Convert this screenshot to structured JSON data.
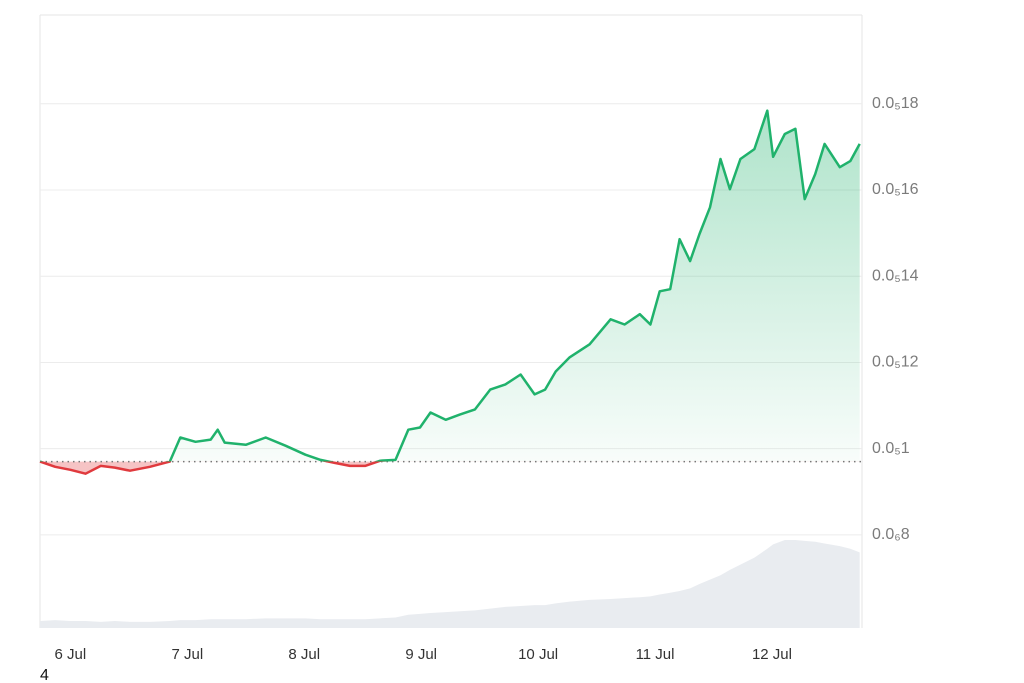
{
  "chart_data": {
    "type": "line",
    "x": [
      5.74,
      5.87,
      6.0,
      6.13,
      6.26,
      6.38,
      6.51,
      6.68,
      6.85,
      6.94,
      7.07,
      7.2,
      7.26,
      7.32,
      7.5,
      7.67,
      7.84,
      8.01,
      8.14,
      8.26,
      8.39,
      8.52,
      8.65,
      8.78,
      8.89,
      8.99,
      9.08,
      9.21,
      9.33,
      9.46,
      9.59,
      9.72,
      9.85,
      9.97,
      10.06,
      10.15,
      10.27,
      10.44,
      10.62,
      10.74,
      10.87,
      10.96,
      11.04,
      11.13,
      11.21,
      11.3,
      11.38,
      11.47,
      11.56,
      11.64,
      11.73,
      11.85,
      11.96,
      12.01,
      12.11,
      12.2,
      12.28,
      12.37,
      12.45,
      12.58,
      12.67,
      12.75
    ],
    "series": [
      {
        "color": "#20b26c",
        "down_color": "#e03a3e",
        "values": [
          9.7e-07,
          9.58e-07,
          9.51e-07,
          9.42e-07,
          9.6e-07,
          9.56e-07,
          9.49e-07,
          9.58e-07,
          9.7e-07,
          1.026e-06,
          1.016e-06,
          1.021e-06,
          1.044e-06,
          1.014e-06,
          1.009e-06,
          1.026e-06,
          1.007e-06,
          9.86e-07,
          9.74e-07,
          9.67e-07,
          9.6e-07,
          9.6e-07,
          9.72e-07,
          9.74e-07,
          1.044e-06,
          1.049e-06,
          1.084e-06,
          1.067e-06,
          1.079e-06,
          1.091e-06,
          1.137e-06,
          1.149e-06,
          1.172e-06,
          1.126e-06,
          1.137e-06,
          1.179e-06,
          1.212e-06,
          1.242e-06,
          1.3e-06,
          1.288e-06,
          1.312e-06,
          1.288e-06,
          1.365e-06,
          1.37e-06,
          1.486e-06,
          1.435e-06,
          1.498e-06,
          1.56e-06,
          1.672e-06,
          1.602e-06,
          1.672e-06,
          1.695e-06,
          1.784e-06,
          1.677e-06,
          1.73e-06,
          1.742e-06,
          1.579e-06,
          1.637e-06,
          1.707e-06,
          1.653e-06,
          1.667e-06,
          1.707e-06
        ]
      }
    ],
    "volume": {
      "color": "#e9ecf0",
      "values": [
        0.08,
        0.09,
        0.08,
        0.08,
        0.07,
        0.08,
        0.07,
        0.07,
        0.08,
        0.09,
        0.09,
        0.1,
        0.1,
        0.1,
        0.1,
        0.11,
        0.11,
        0.11,
        0.1,
        0.1,
        0.1,
        0.1,
        0.11,
        0.12,
        0.15,
        0.16,
        0.17,
        0.18,
        0.19,
        0.2,
        0.22,
        0.24,
        0.25,
        0.26,
        0.26,
        0.28,
        0.3,
        0.32,
        0.33,
        0.34,
        0.35,
        0.36,
        0.38,
        0.4,
        0.42,
        0.45,
        0.5,
        0.55,
        0.6,
        0.66,
        0.72,
        0.8,
        0.9,
        0.95,
        1.0,
        1.0,
        0.99,
        0.98,
        0.96,
        0.93,
        0.9,
        0.86
      ]
    },
    "baseline": 9.7e-07,
    "xlim": [
      5.74,
      12.77
    ],
    "xticks": [
      {
        "value": 6,
        "label": "6 Jul"
      },
      {
        "value": 7,
        "label": "7 Jul"
      },
      {
        "value": 8,
        "label": "8 Jul"
      },
      {
        "value": 9,
        "label": "9 Jul"
      },
      {
        "value": 10,
        "label": "10 Jul"
      },
      {
        "value": 11,
        "label": "11 Jul"
      },
      {
        "value": 12,
        "label": "12 Jul"
      }
    ],
    "ylim": [
      5.84e-07,
      2.006e-06
    ],
    "yticks": [
      {
        "value": 8e-07,
        "label": "0.0₆8"
      },
      {
        "value": 1e-06,
        "label": "0.0₅1"
      },
      {
        "value": 1.2e-06,
        "label": "0.0₅12"
      },
      {
        "value": 1.4e-06,
        "label": "0.0₅14"
      },
      {
        "value": 1.6e-06,
        "label": "0.0₅16"
      },
      {
        "value": 1.8e-06,
        "label": "0.0₅18"
      }
    ],
    "grid": true,
    "footnote": "4"
  }
}
